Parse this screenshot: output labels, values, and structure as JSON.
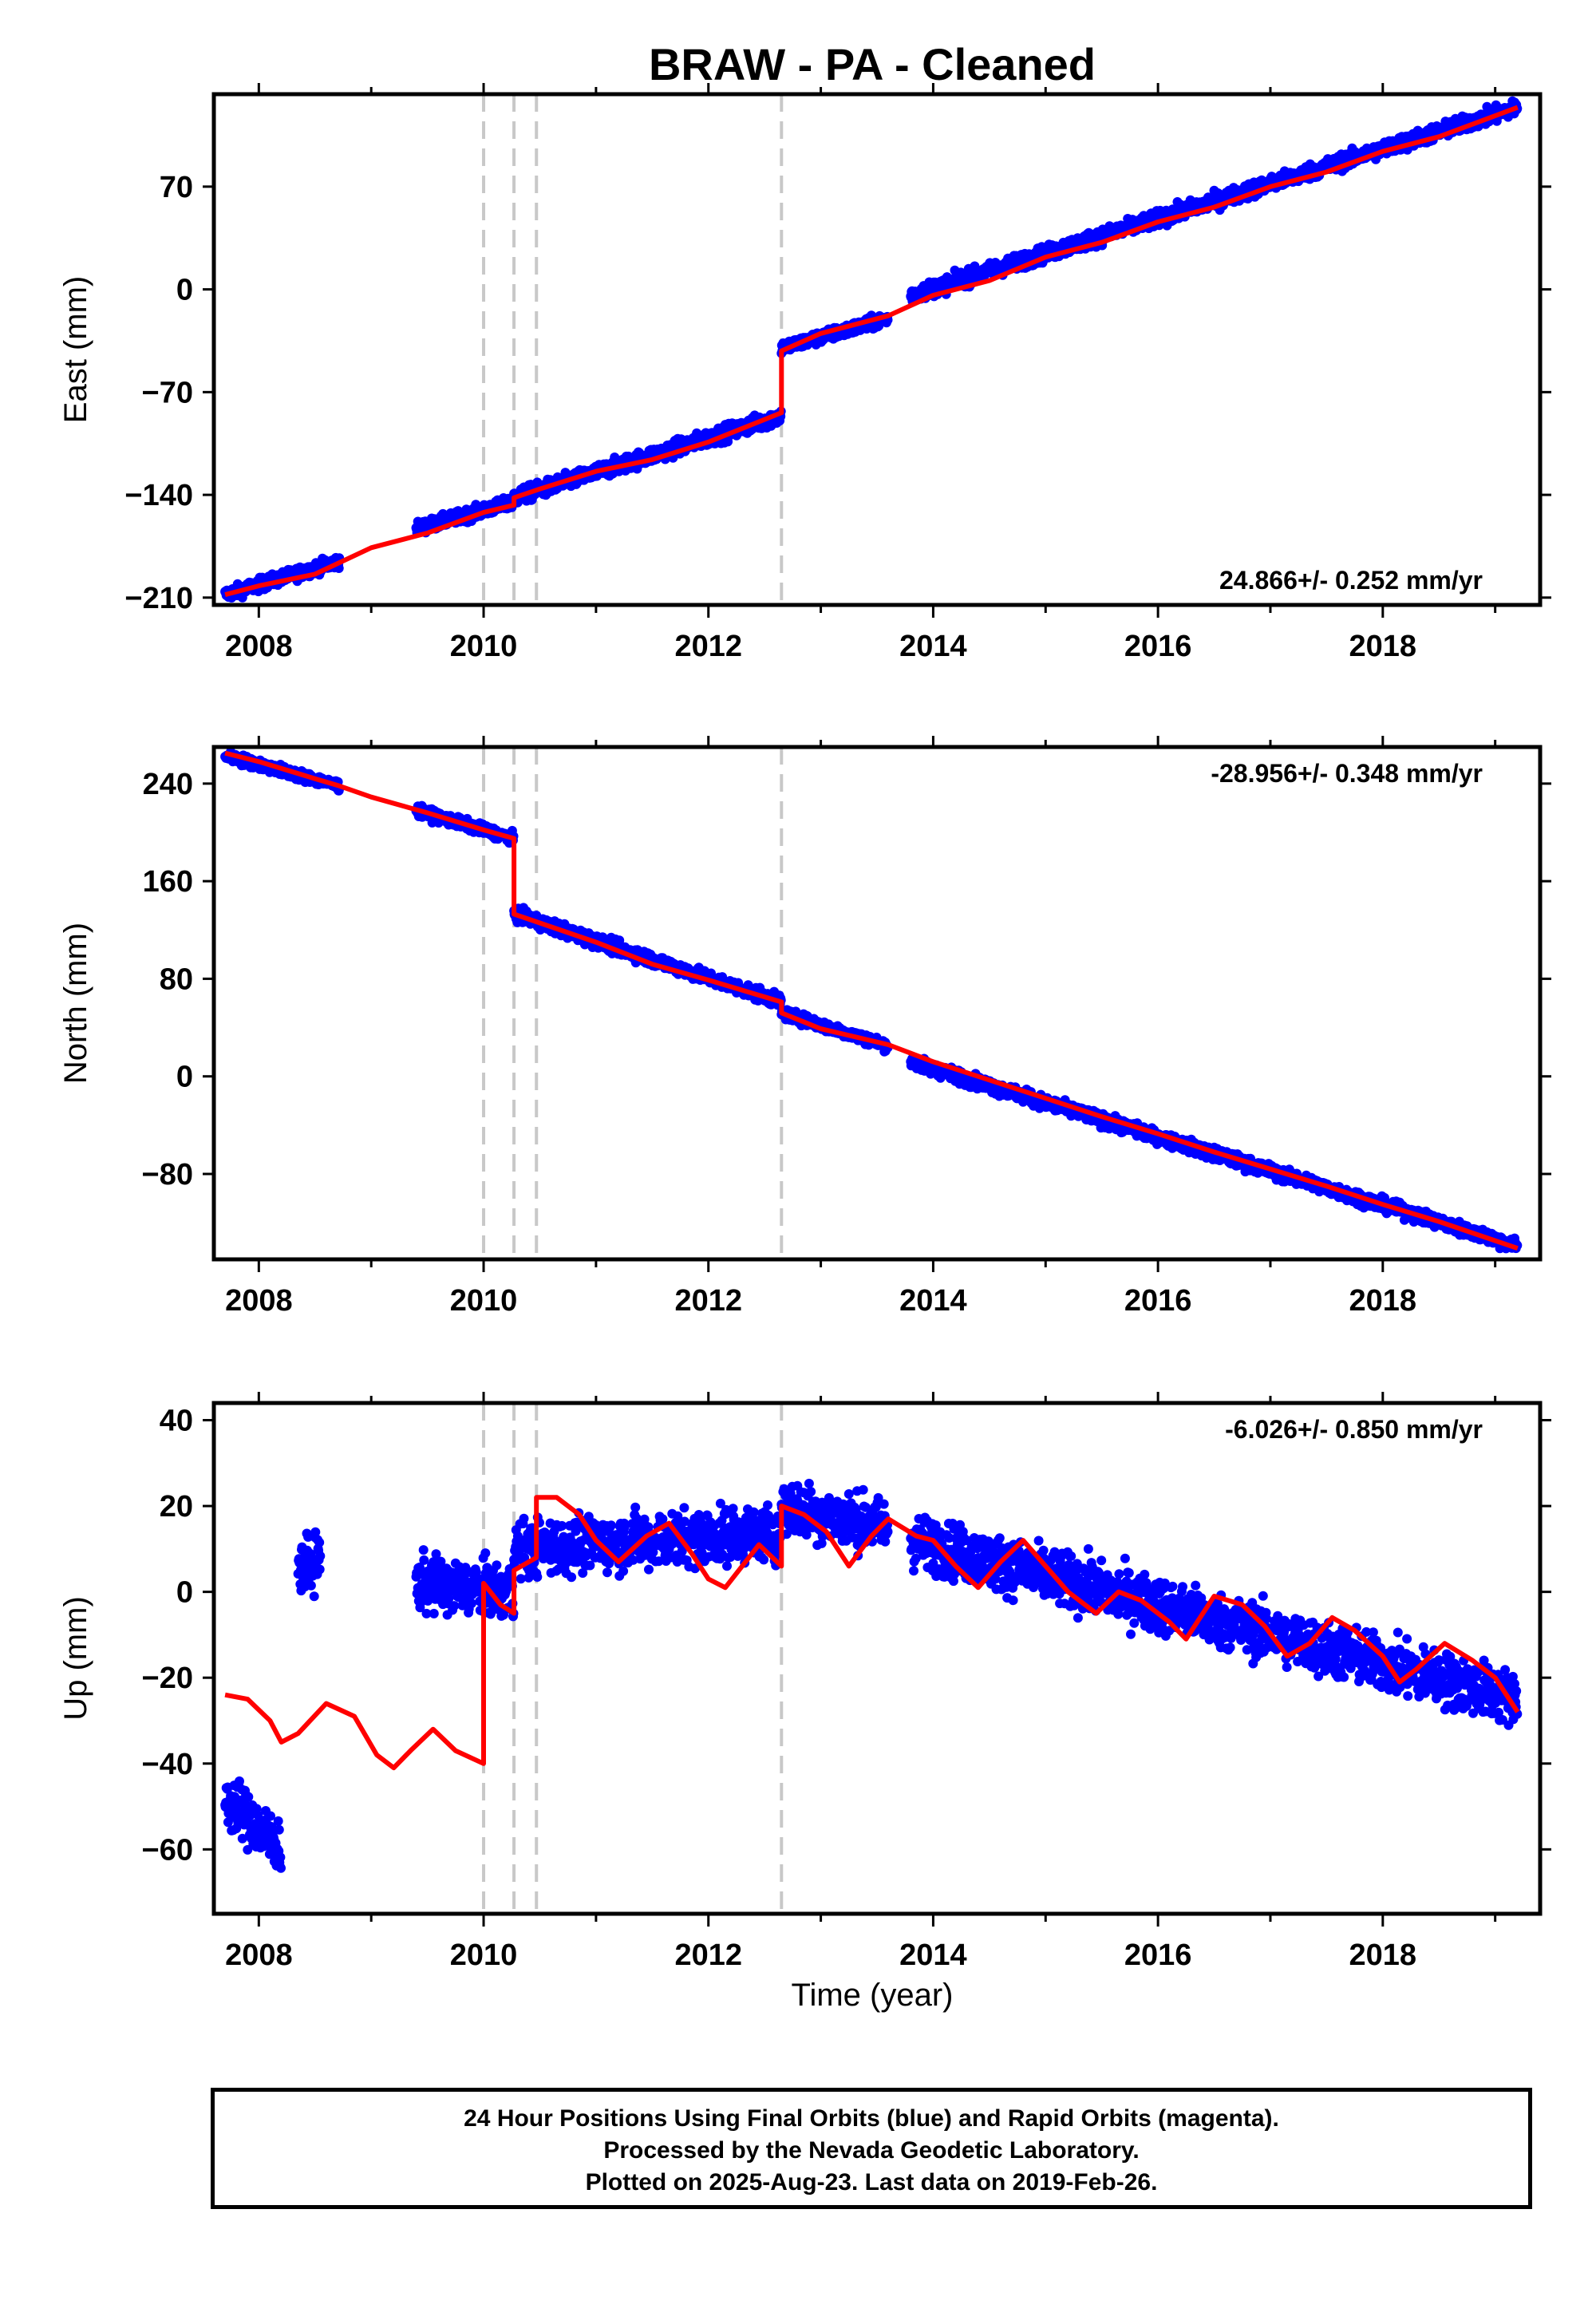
{
  "title": "BRAW  - PA - Cleaned",
  "xlabel": "Time (year)",
  "footer": {
    "line1": "24 Hour Positions Using Final Orbits (blue) and Rapid Orbits (magenta).",
    "line2": "Processed by the Nevada Geodetic Laboratory.",
    "line3": "Plotted on 2025-Aug-23. Last data on 2019-Feb-26."
  },
  "colors": {
    "observations": "#0000ff",
    "model": "#ff0000",
    "steps": "#c8c8c8",
    "frame": "#000000"
  },
  "chart_data": [
    {
      "type": "scatter",
      "name": "east",
      "ylabel": "East (mm)",
      "rate_label": "24.866+/- 0.252 mm/yr",
      "rate_position": "bottom-right",
      "xlim": [
        2007.6,
        2019.4
      ],
      "ylim": [
        -215,
        133
      ],
      "yticks": [
        -210,
        -140,
        -70,
        0,
        70
      ],
      "ytick_labels": [
        "−210",
        "−140",
        "−70",
        "0",
        "70"
      ],
      "xticks": [
        2008,
        2010,
        2012,
        2014,
        2016,
        2018
      ],
      "step_epochs": [
        2010.0,
        2010.27,
        2010.47,
        2012.65
      ],
      "model": [
        [
          2007.7,
          -208
        ],
        [
          2008.0,
          -202
        ],
        [
          2008.5,
          -194
        ],
        [
          2009.0,
          -176
        ],
        [
          2009.5,
          -166
        ],
        [
          2010.0,
          -152
        ],
        [
          2010.27,
          -147
        ],
        [
          2010.27,
          -142
        ],
        [
          2010.5,
          -136
        ],
        [
          2011.0,
          -124
        ],
        [
          2011.5,
          -116
        ],
        [
          2012.0,
          -104
        ],
        [
          2012.65,
          -84
        ],
        [
          2012.65,
          -42
        ],
        [
          2013.0,
          -30
        ],
        [
          2013.6,
          -18
        ],
        [
          2014.0,
          -4
        ],
        [
          2014.5,
          6
        ],
        [
          2015.0,
          22
        ],
        [
          2015.5,
          32
        ],
        [
          2016.0,
          46
        ],
        [
          2016.5,
          56
        ],
        [
          2017.0,
          70
        ],
        [
          2017.5,
          80
        ],
        [
          2018.0,
          94
        ],
        [
          2018.5,
          104
        ],
        [
          2019.2,
          124
        ]
      ],
      "observations": [
        {
          "from": 2007.7,
          "to": 2008.72,
          "y0": -208,
          "y1": -185,
          "spread": 4
        },
        {
          "from": 2009.4,
          "to": 2010.27,
          "y0": -163,
          "y1": -145,
          "spread": 4
        },
        {
          "from": 2010.27,
          "to": 2012.65,
          "y0": -142,
          "y1": -86,
          "spread": 5
        },
        {
          "from": 2012.65,
          "to": 2013.6,
          "y0": -40,
          "y1": -20,
          "spread": 4
        },
        {
          "from": 2013.8,
          "to": 2019.2,
          "y0": -4,
          "y1": 124,
          "spread": 5
        }
      ]
    },
    {
      "type": "scatter",
      "name": "north",
      "ylabel": "North (mm)",
      "rate_label": "-28.956+/- 0.348 mm/yr",
      "rate_position": "top-right",
      "xlim": [
        2007.6,
        2019.4
      ],
      "ylim": [
        -150,
        270
      ],
      "yticks": [
        -80,
        0,
        80,
        160,
        240
      ],
      "ytick_labels": [
        "−80",
        "0",
        "80",
        "160",
        "240"
      ],
      "xticks": [
        2008,
        2010,
        2012,
        2014,
        2016,
        2018
      ],
      "step_epochs": [
        2010.0,
        2010.27,
        2010.47,
        2012.65
      ],
      "model": [
        [
          2007.7,
          265
        ],
        [
          2008.0,
          258
        ],
        [
          2008.5,
          244
        ],
        [
          2008.72,
          238
        ],
        [
          2009.0,
          229
        ],
        [
          2009.5,
          216
        ],
        [
          2010.0,
          202
        ],
        [
          2010.27,
          195
        ],
        [
          2010.27,
          133
        ],
        [
          2011.0,
          110
        ],
        [
          2011.5,
          92
        ],
        [
          2012.0,
          79
        ],
        [
          2012.65,
          61
        ],
        [
          2012.65,
          52
        ],
        [
          2013.0,
          39
        ],
        [
          2013.6,
          26
        ],
        [
          2014.0,
          12
        ],
        [
          2014.5,
          -3
        ],
        [
          2015.0,
          -18
        ],
        [
          2015.5,
          -33
        ],
        [
          2016.0,
          -47
        ],
        [
          2016.5,
          -62
        ],
        [
          2017.0,
          -76
        ],
        [
          2017.5,
          -90
        ],
        [
          2018.0,
          -105
        ],
        [
          2018.5,
          -119
        ],
        [
          2019.2,
          -141
        ]
      ],
      "observations": [
        {
          "from": 2007.7,
          "to": 2008.72,
          "y0": 263,
          "y1": 238,
          "spread": 4
        },
        {
          "from": 2009.4,
          "to": 2010.27,
          "y0": 218,
          "y1": 195,
          "spread": 4
        },
        {
          "from": 2010.27,
          "to": 2012.65,
          "y0": 133,
          "y1": 61,
          "spread": 5
        },
        {
          "from": 2012.65,
          "to": 2013.6,
          "y0": 52,
          "y1": 25,
          "spread": 4
        },
        {
          "from": 2013.8,
          "to": 2019.2,
          "y0": 12,
          "y1": -139,
          "spread": 5
        }
      ]
    },
    {
      "type": "scatter",
      "name": "up",
      "ylabel": "Up (mm)",
      "rate_label": "-6.026+/- 0.850 mm/yr",
      "rate_position": "top-right",
      "xlim": [
        2007.6,
        2019.4
      ],
      "ylim": [
        -75,
        44
      ],
      "yticks": [
        -60,
        -40,
        -20,
        0,
        20,
        40
      ],
      "ytick_labels": [
        "−60",
        "−40",
        "−20",
        "0",
        "20",
        "40"
      ],
      "xticks": [
        2008,
        2010,
        2012,
        2014,
        2016,
        2018
      ],
      "step_epochs": [
        2010.0,
        2010.27,
        2010.47,
        2012.65
      ],
      "model": [
        [
          2007.7,
          -24
        ],
        [
          2007.9,
          -25
        ],
        [
          2008.1,
          -30
        ],
        [
          2008.2,
          -35
        ],
        [
          2008.35,
          -33
        ],
        [
          2008.6,
          -26
        ],
        [
          2008.85,
          -29
        ],
        [
          2009.05,
          -38
        ],
        [
          2009.2,
          -41
        ],
        [
          2009.35,
          -37
        ],
        [
          2009.55,
          -32
        ],
        [
          2009.75,
          -37
        ],
        [
          2010.0,
          -40
        ],
        [
          2010.0,
          2
        ],
        [
          2010.15,
          -3
        ],
        [
          2010.27,
          -5
        ],
        [
          2010.27,
          5
        ],
        [
          2010.47,
          8
        ],
        [
          2010.47,
          22
        ],
        [
          2010.65,
          22
        ],
        [
          2010.85,
          18
        ],
        [
          2011.0,
          12
        ],
        [
          2011.2,
          7
        ],
        [
          2011.45,
          13
        ],
        [
          2011.65,
          16
        ],
        [
          2011.85,
          9
        ],
        [
          2012.0,
          3
        ],
        [
          2012.15,
          1
        ],
        [
          2012.45,
          11
        ],
        [
          2012.65,
          6
        ],
        [
          2012.65,
          20
        ],
        [
          2012.85,
          18
        ],
        [
          2013.05,
          14
        ],
        [
          2013.25,
          6
        ],
        [
          2013.45,
          13
        ],
        [
          2013.6,
          17
        ],
        [
          2013.85,
          13
        ],
        [
          2014.0,
          12
        ],
        [
          2014.2,
          6
        ],
        [
          2014.4,
          1
        ],
        [
          2014.6,
          7
        ],
        [
          2014.8,
          12
        ],
        [
          2015.0,
          6
        ],
        [
          2015.2,
          0
        ],
        [
          2015.45,
          -5
        ],
        [
          2015.65,
          0
        ],
        [
          2015.85,
          -2
        ],
        [
          2016.1,
          -7
        ],
        [
          2016.25,
          -11
        ],
        [
          2016.5,
          -1
        ],
        [
          2016.75,
          -3
        ],
        [
          2016.95,
          -8
        ],
        [
          2017.15,
          -15
        ],
        [
          2017.35,
          -12
        ],
        [
          2017.55,
          -6
        ],
        [
          2017.75,
          -9
        ],
        [
          2018.0,
          -15
        ],
        [
          2018.15,
          -21
        ],
        [
          2018.3,
          -18
        ],
        [
          2018.55,
          -12
        ],
        [
          2018.8,
          -16
        ],
        [
          2019.0,
          -20
        ],
        [
          2019.2,
          -28
        ]
      ],
      "observations": [
        {
          "from": 2007.7,
          "to": 2008.2,
          "y0": -48,
          "y1": -60,
          "spread": 6
        },
        {
          "from": 2008.35,
          "to": 2008.55,
          "y0": 5,
          "y1": 8,
          "spread": 6
        },
        {
          "from": 2009.4,
          "to": 2010.27,
          "y0": 2,
          "y1": 0,
          "spread": 6
        },
        {
          "from": 2010.27,
          "to": 2012.65,
          "y0": 10,
          "y1": 14,
          "spread": 6
        },
        {
          "from": 2012.65,
          "to": 2013.6,
          "y0": 20,
          "y1": 15,
          "spread": 6
        },
        {
          "from": 2013.8,
          "to": 2019.2,
          "y0": 12,
          "y1": -25,
          "spread": 6
        }
      ]
    }
  ]
}
